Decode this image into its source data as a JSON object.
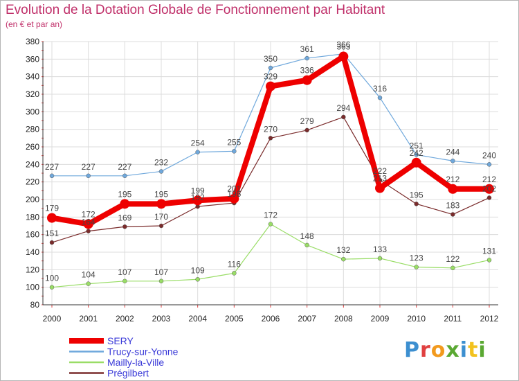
{
  "header": {
    "title": "Evolution de la Dotation Globale de Fonctionnement par Habitant",
    "subtitle": "(en € et par an)"
  },
  "logo": {
    "text": "Proxiti",
    "colors": [
      "#3c8fd0",
      "#e04040",
      "#f29a1e",
      "#5aa832",
      "#3c8fd0",
      "#f2c21e",
      "#5aa832"
    ]
  },
  "chart_data": {
    "type": "line",
    "title": "Evolution de la Dotation Globale de Fonctionnement par Habitant",
    "subtitle": "(en € et par an)",
    "xlabel": "",
    "ylabel": "",
    "ylim": [
      80,
      380
    ],
    "yticks": [
      80,
      100,
      120,
      140,
      160,
      180,
      200,
      220,
      240,
      260,
      280,
      300,
      320,
      340,
      360,
      380
    ],
    "grid": true,
    "legend_position": "bottom-left",
    "categories": [
      "2000",
      "2001",
      "2002",
      "2003",
      "2004",
      "2005",
      "2006",
      "2007",
      "2008",
      "2009",
      "2010",
      "2011",
      "2012"
    ],
    "series": [
      {
        "name": "SERY",
        "color": "#ee0000",
        "values": [
          179,
          172,
          195,
          195,
          199,
          201,
          329,
          336,
          363,
          213,
          242,
          212,
          212
        ]
      },
      {
        "name": "Trucy-sur-Yonne",
        "color": "#6fa8dc",
        "values": [
          227,
          227,
          227,
          232,
          254,
          255,
          350,
          361,
          366,
          316,
          251,
          244,
          240
        ]
      },
      {
        "name": "Mailly-la-Ville",
        "color": "#99dd66",
        "values": [
          100,
          104,
          107,
          107,
          109,
          116,
          172,
          148,
          132,
          133,
          123,
          122,
          131
        ]
      },
      {
        "name": "Prégilbert",
        "color": "#7a2b2b",
        "values": [
          151,
          164,
          169,
          170,
          192,
          196,
          270,
          279,
          294,
          222,
          195,
          183,
          202
        ]
      }
    ],
    "labels": {
      "SERY": [
        "179",
        "172",
        "195",
        "195",
        "199",
        "201",
        "329",
        "336",
        "363",
        "213",
        "242",
        "212",
        "212"
      ],
      "Trucy-sur-Yonne": [
        "227",
        "227",
        "227",
        "232",
        "254",
        "255",
        "350",
        "361",
        "366",
        "316",
        "251",
        "244",
        "240"
      ],
      "Mailly-la-Ville": [
        "100",
        "104",
        "107",
        "107",
        "109",
        "116",
        "172",
        "148",
        "132",
        "133",
        "123",
        "122",
        "131"
      ],
      "Prégilbert": [
        "151",
        "164",
        "169",
        "170",
        "192",
        "196",
        "270",
        "279",
        "294",
        "222",
        "195",
        "183",
        "202"
      ]
    }
  }
}
